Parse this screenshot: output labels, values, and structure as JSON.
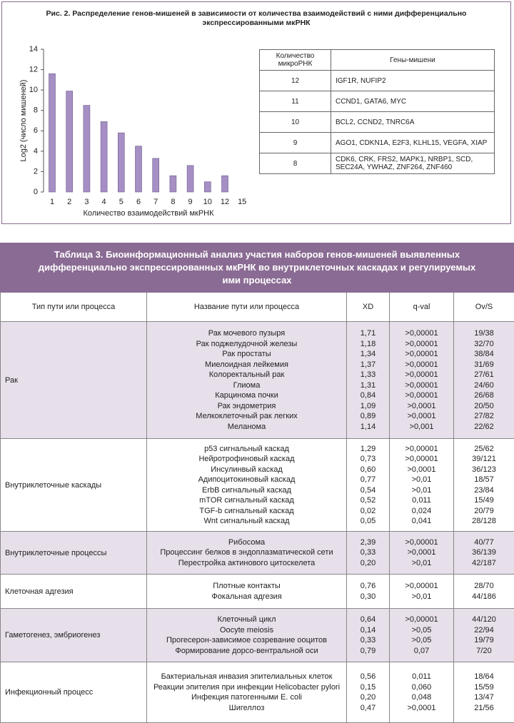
{
  "chart_data": {
    "type": "bar",
    "title": "Рис. 2. Распределение генов-мишеней в зависимости от количества взаимодействий с ними дифференциально экспрессированными мкРНК",
    "x_label": "Количество взаимодействий мкРНК",
    "y_label": "Log2 (число мишеней)",
    "categories": [
      "1",
      "2",
      "3",
      "4",
      "5",
      "6",
      "7",
      "8",
      "9",
      "10",
      "12",
      "15"
    ],
    "values": [
      11.6,
      9.9,
      8.5,
      6.9,
      5.8,
      4.5,
      3.3,
      1.6,
      2.6,
      1.0,
      1.6,
      null
    ],
    "color": "#a58fc4",
    "ylim": [
      0,
      14
    ],
    "yticks": [
      0,
      2,
      4,
      6,
      8,
      10,
      12,
      14
    ]
  },
  "gene_table": {
    "headers": [
      "Количество микроРНК",
      "Гены-мишени"
    ],
    "rows": [
      [
        "12",
        "IGF1R, NUFIP2"
      ],
      [
        "11",
        "CCND1, GATA6, MYC"
      ],
      [
        "10",
        "BCL2, CCND2, TNRC6A"
      ],
      [
        "9",
        "AGO1, CDKN1A, E2F3, KLHL15, VEGFA, XIAP"
      ],
      [
        "8",
        "CDK6, CRK, FRS2, MAPK1, NRBP1, SCD, SEC24A, YWHAZ, ZNF264, ZNF460"
      ]
    ]
  },
  "table3": {
    "title": "Таблица 3. Биоинформационный анализ участия наборов генов-мишеней выявленных дифференциально экспрессированных мкРНК во внутриклеточных каскадах и регулируемых ими процессах",
    "headers": [
      "Тип пути или процесса",
      "Название пути или процесса",
      "XD",
      "q-val",
      "Ov/S"
    ],
    "groups": [
      {
        "type": "Рак",
        "rows": [
          [
            "Рак мочевого пузыря",
            "1,71",
            ">0,00001",
            "19/38"
          ],
          [
            "Рак поджелудочной железы",
            "1,18",
            ">0,00001",
            "32/70"
          ],
          [
            "Рак простаты",
            "1,34",
            ">0,00001",
            "38/84"
          ],
          [
            "Миелоидная лейкемия",
            "1,37",
            ">0,00001",
            "31/69"
          ],
          [
            "Колоректальный рак",
            "1,33",
            ">0,00001",
            "27/61"
          ],
          [
            "Глиома",
            "1,31",
            ">0,00001",
            "24/60"
          ],
          [
            "Карцинома почки",
            "0,84",
            ">0,00001",
            "26/68"
          ],
          [
            "Рак эндометрия",
            "1,09",
            ">0,0001",
            "20/50"
          ],
          [
            "Мелкоклеточный рак легких",
            "0,89",
            ">0,0001",
            "27/82"
          ],
          [
            "Меланома",
            "1,14",
            ">0,001",
            "22/62"
          ]
        ]
      },
      {
        "type": "Внутриклеточные каскады",
        "rows": [
          [
            "p53 сигнальный каскад",
            "1,29",
            ">0,00001",
            "25/62"
          ],
          [
            "Нейротрофиновый каскад",
            "0,73",
            ">0,00001",
            "39/121"
          ],
          [
            "Инсулинвый каскад",
            "0,60",
            ">0,0001",
            "36/123"
          ],
          [
            "Адипоцитокиновый каскад",
            "0,77",
            ">0,01",
            "18/57"
          ],
          [
            "ErbB сигнальный каскад",
            "0,54",
            ">0,01",
            "23/84"
          ],
          [
            "mTOR сигнальный каскад",
            "0,52",
            "0,011",
            "15/49"
          ],
          [
            "TGF-b сигнальный каскад",
            "0,02",
            "0,024",
            "20/79"
          ],
          [
            "Wnt сигнальный каскад",
            "0,05",
            "0,041",
            "28/128"
          ]
        ]
      },
      {
        "type": "Внутриклеточные процессы",
        "rows": [
          [
            "Рибосома",
            "2,39",
            ">0,00001",
            "40/77"
          ],
          [
            "Процессинг белков в эндоплазматической сети",
            "0,33",
            ">0,0001",
            "36/139"
          ],
          [
            "Перестройка актинового цитоскелета",
            "0,20",
            ">0,01",
            "42/187"
          ]
        ]
      },
      {
        "type": "Клеточная адгезия",
        "rows": [
          [
            "Плотные контакты",
            "0,76",
            ">0,00001",
            "28/70"
          ],
          [
            "Фокальная адгезия",
            "0,30",
            ">0,01",
            "44/186"
          ]
        ]
      },
      {
        "type": "Гаметогенез, эмбриогенез",
        "rows": [
          [
            "Клеточный цикл",
            "0,64",
            ">0,00001",
            "44/120"
          ],
          [
            "Oocyte meiosis",
            "0,14",
            ">0,05",
            "22/94"
          ],
          [
            "Прогесерон-зависимое созревание ооцитов",
            "0,33",
            ">0,05",
            "19/79"
          ],
          [
            "Формирование дорсо-вентральной оси",
            "0,79",
            "0,07",
            "7/20"
          ]
        ]
      },
      {
        "type": "Инфекционный процесс",
        "rows": [
          [
            "Бактериальная инвазия эпителиальных клеток",
            "0,56",
            "0,011",
            "18/64"
          ],
          [
            "Реакции эпителия при инфекции Helicobacter pylori",
            "0,15",
            "0,060",
            "15/59"
          ],
          [
            "Инфекция патогенными E. coli",
            "0,20",
            "0,048",
            "13/47"
          ],
          [
            "Шигеллоз",
            "0,47",
            ">0,0001",
            "21/56"
          ]
        ]
      }
    ]
  }
}
